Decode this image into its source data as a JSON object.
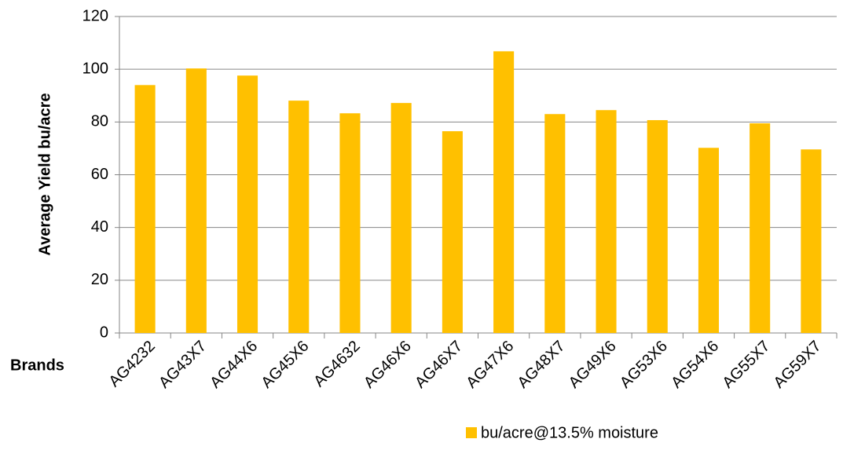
{
  "chart_data": {
    "type": "bar",
    "categories": [
      "AG4232",
      "AG43X7",
      "AG44X6",
      "AG45X6",
      "AG4632",
      "AG46X6",
      "AG46X7",
      "AG47X6",
      "AG48X7",
      "AG49X6",
      "AG53X6",
      "AG54X6",
      "AG55X7",
      "AG59X7"
    ],
    "series": [
      {
        "name": "bu/acre@13.5% moisture",
        "color": "#FFC000",
        "values": [
          94.0,
          100.3,
          97.6,
          88.1,
          83.3,
          87.2,
          76.5,
          106.8,
          83.0,
          84.5,
          80.7,
          70.2,
          79.5,
          69.6
        ]
      }
    ],
    "y_label": "Average Yield bu/acre",
    "x_label": "Brands",
    "ylim": [
      0,
      120
    ],
    "yticks": [
      0,
      20,
      40,
      60,
      80,
      100,
      120
    ],
    "grid": true,
    "legend": "bottom"
  }
}
